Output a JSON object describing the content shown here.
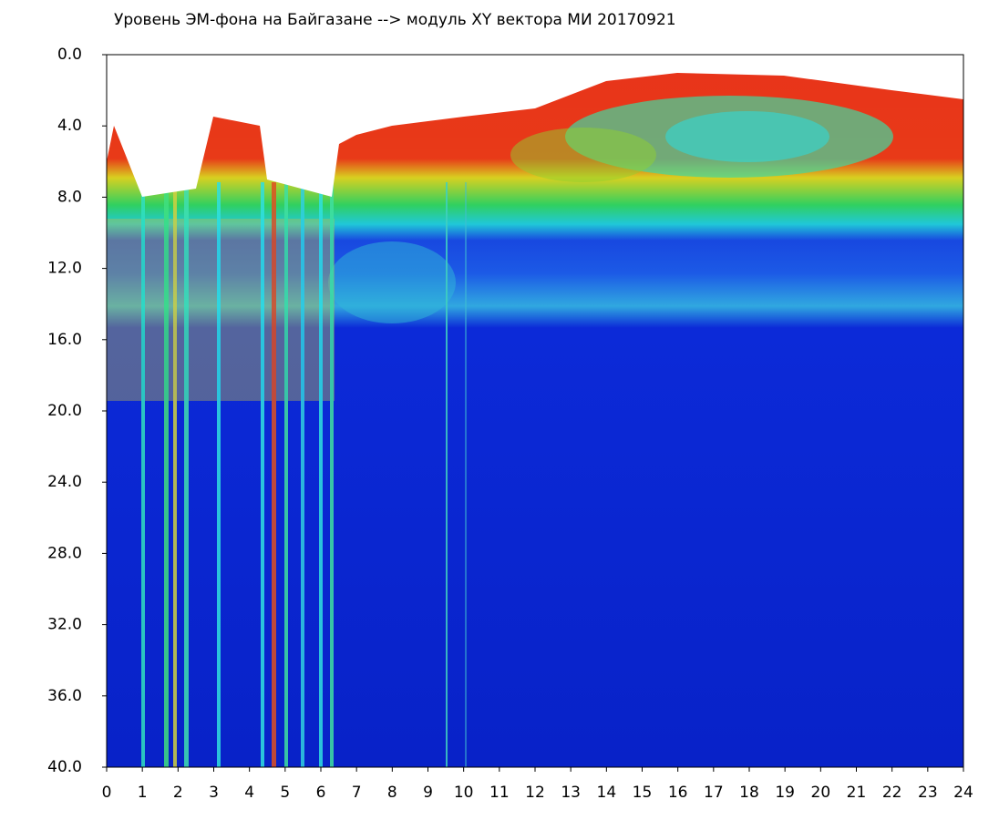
{
  "chart_data": {
    "type": "heatmap",
    "title": "Уровень ЭМ-фона на Байгазане  --> модуль XY вектора МИ  20170921",
    "xlim": [
      0,
      24
    ],
    "xticks": [
      0,
      1,
      2,
      3,
      4,
      5,
      6,
      7,
      8,
      9,
      10,
      11,
      12,
      13,
      14,
      15,
      16,
      17,
      18,
      19,
      20,
      21,
      22,
      23,
      24
    ],
    "ylim": [
      0,
      40
    ],
    "y_inverted": true,
    "yticks": [
      {
        "value": 0,
        "label": "0.0"
      },
      {
        "value": 4,
        "label": "4.0"
      },
      {
        "value": 8,
        "label": "8.0"
      },
      {
        "value": 12,
        "label": "12.0"
      },
      {
        "value": 16,
        "label": "16.0"
      },
      {
        "value": 20,
        "label": "20.0"
      },
      {
        "value": 24,
        "label": "24.0"
      },
      {
        "value": 28,
        "label": "28.0"
      },
      {
        "value": 32,
        "label": "32.0"
      },
      {
        "value": 36,
        "label": "36.0"
      },
      {
        "value": 40,
        "label": "40.0"
      }
    ]
  }
}
